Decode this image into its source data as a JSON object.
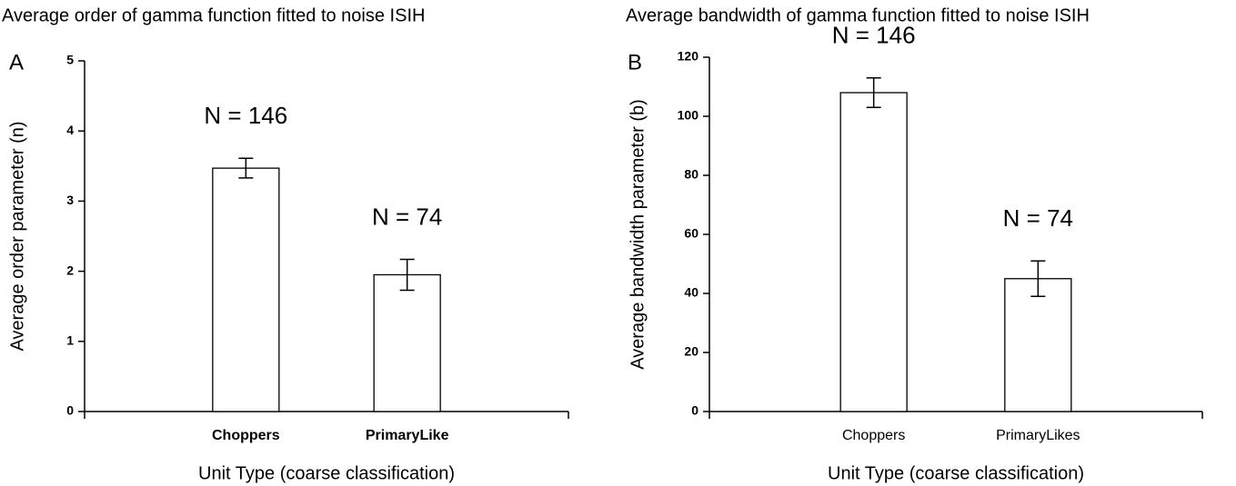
{
  "chart_data": [
    {
      "type": "bar",
      "panel_label": "A",
      "title": "Average order of gamma function fitted to noise ISIH",
      "y_label": "Average order parameter (n)",
      "x_label": "Unit Type (coarse classification)",
      "categories": [
        "Choppers",
        "PrimaryLike"
      ],
      "values": [
        3.47,
        1.95
      ],
      "errors": [
        0.14,
        0.22
      ],
      "annotations": [
        "N = 146",
        "N = 74"
      ],
      "ylim": [
        0,
        5
      ],
      "yticks": [
        0,
        1,
        2,
        3,
        4,
        5
      ],
      "color": "#ffffff"
    },
    {
      "type": "bar",
      "panel_label": "B",
      "title": "Average bandwidth of gamma function fitted to noise ISIH",
      "y_label": "Average bandwidth parameter (b)",
      "x_label": "Unit Type (coarse classification)",
      "categories": [
        "Choppers",
        "PrimaryLikes"
      ],
      "values": [
        108,
        45
      ],
      "errors": [
        5,
        6
      ],
      "annotations": [
        "N = 146",
        "N = 74"
      ],
      "ylim": [
        0,
        120
      ],
      "yticks": [
        0,
        20,
        40,
        60,
        80,
        100,
        120
      ],
      "color": "#ffffff"
    }
  ]
}
